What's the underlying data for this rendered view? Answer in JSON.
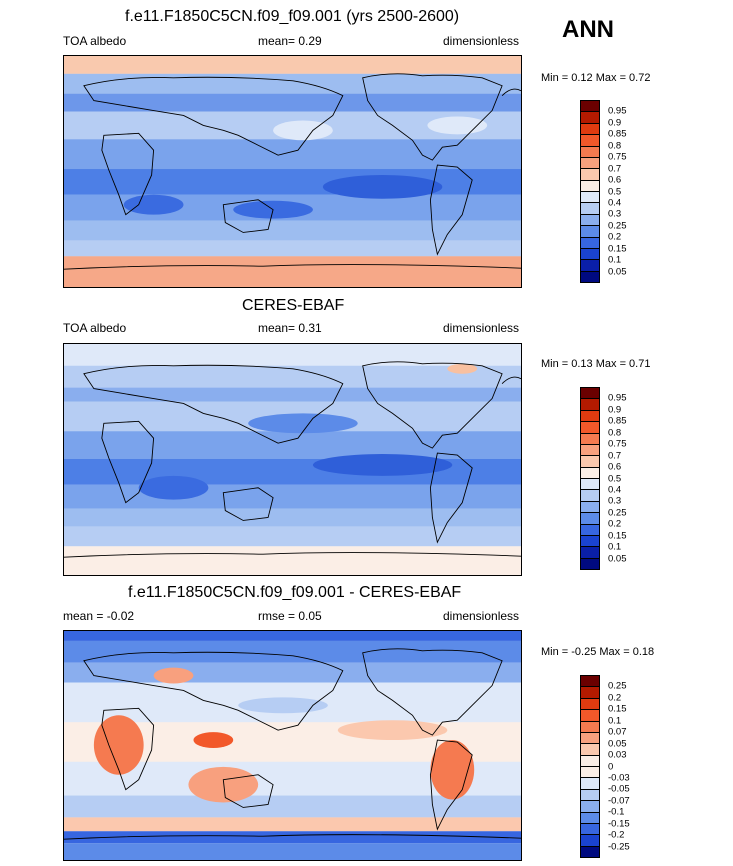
{
  "season": "ANN",
  "panels": [
    {
      "title": "f.e11.F1850C5CN.f09_f09.001 (yrs 2500-2600)",
      "left_label": "TOA albedo",
      "mid_label": "mean=   0.29",
      "right_label": "dimensionless",
      "minmax": "Min =   0.12 Max =   0.72",
      "colorbar_labels": [
        "0.95",
        "0.9",
        "0.85",
        "0.8",
        "0.75",
        "0.7",
        "0.6",
        "0.5",
        "0.4",
        "0.3",
        "0.25",
        "0.2",
        "0.15",
        "0.1",
        "0.05"
      ]
    },
    {
      "title": "CERES-EBAF",
      "left_label": "TOA albedo",
      "mid_label": "mean=   0.31",
      "right_label": "dimensionless",
      "minmax": "Min =   0.13 Max =   0.71",
      "colorbar_labels": [
        "0.95",
        "0.9",
        "0.85",
        "0.8",
        "0.75",
        "0.7",
        "0.6",
        "0.5",
        "0.4",
        "0.3",
        "0.25",
        "0.2",
        "0.15",
        "0.1",
        "0.05"
      ]
    },
    {
      "title": "f.e11.F1850C5CN.f09_f09.001 - CERES-EBAF",
      "left_label": "mean =  -0.02",
      "mid_label": "rmse =   0.05",
      "right_label": "dimensionless",
      "minmax": "Min =  -0.25 Max =   0.18",
      "colorbar_labels": [
        "0.25",
        "0.2",
        "0.15",
        "0.1",
        "0.07",
        "0.05",
        "0.03",
        "0",
        "-0.03",
        "-0.05",
        "-0.07",
        "-0.1",
        "-0.15",
        "-0.2",
        "-0.25"
      ]
    }
  ],
  "colors": {
    "colorbar": [
      "#6b0000",
      "#b31a00",
      "#e03b10",
      "#f2582a",
      "#f57a50",
      "#f8a07e",
      "#fbc8ae",
      "#fbeee6",
      "#dfe9f9",
      "#b6cdf3",
      "#8aaeee",
      "#5c8be8",
      "#3766e0",
      "#1a43d0",
      "#0a1fa8",
      "#000a80"
    ],
    "diff_colorbar": [
      "#6b0000",
      "#b31a00",
      "#e03b10",
      "#f2582a",
      "#f57a50",
      "#f8a07e",
      "#fbc8ae",
      "#fbeee6",
      "#fbeee6",
      "#dfe9f9",
      "#b6cdf3",
      "#8aaeee",
      "#5c8be8",
      "#3766e0",
      "#1a43d0",
      "#000a80"
    ]
  }
}
